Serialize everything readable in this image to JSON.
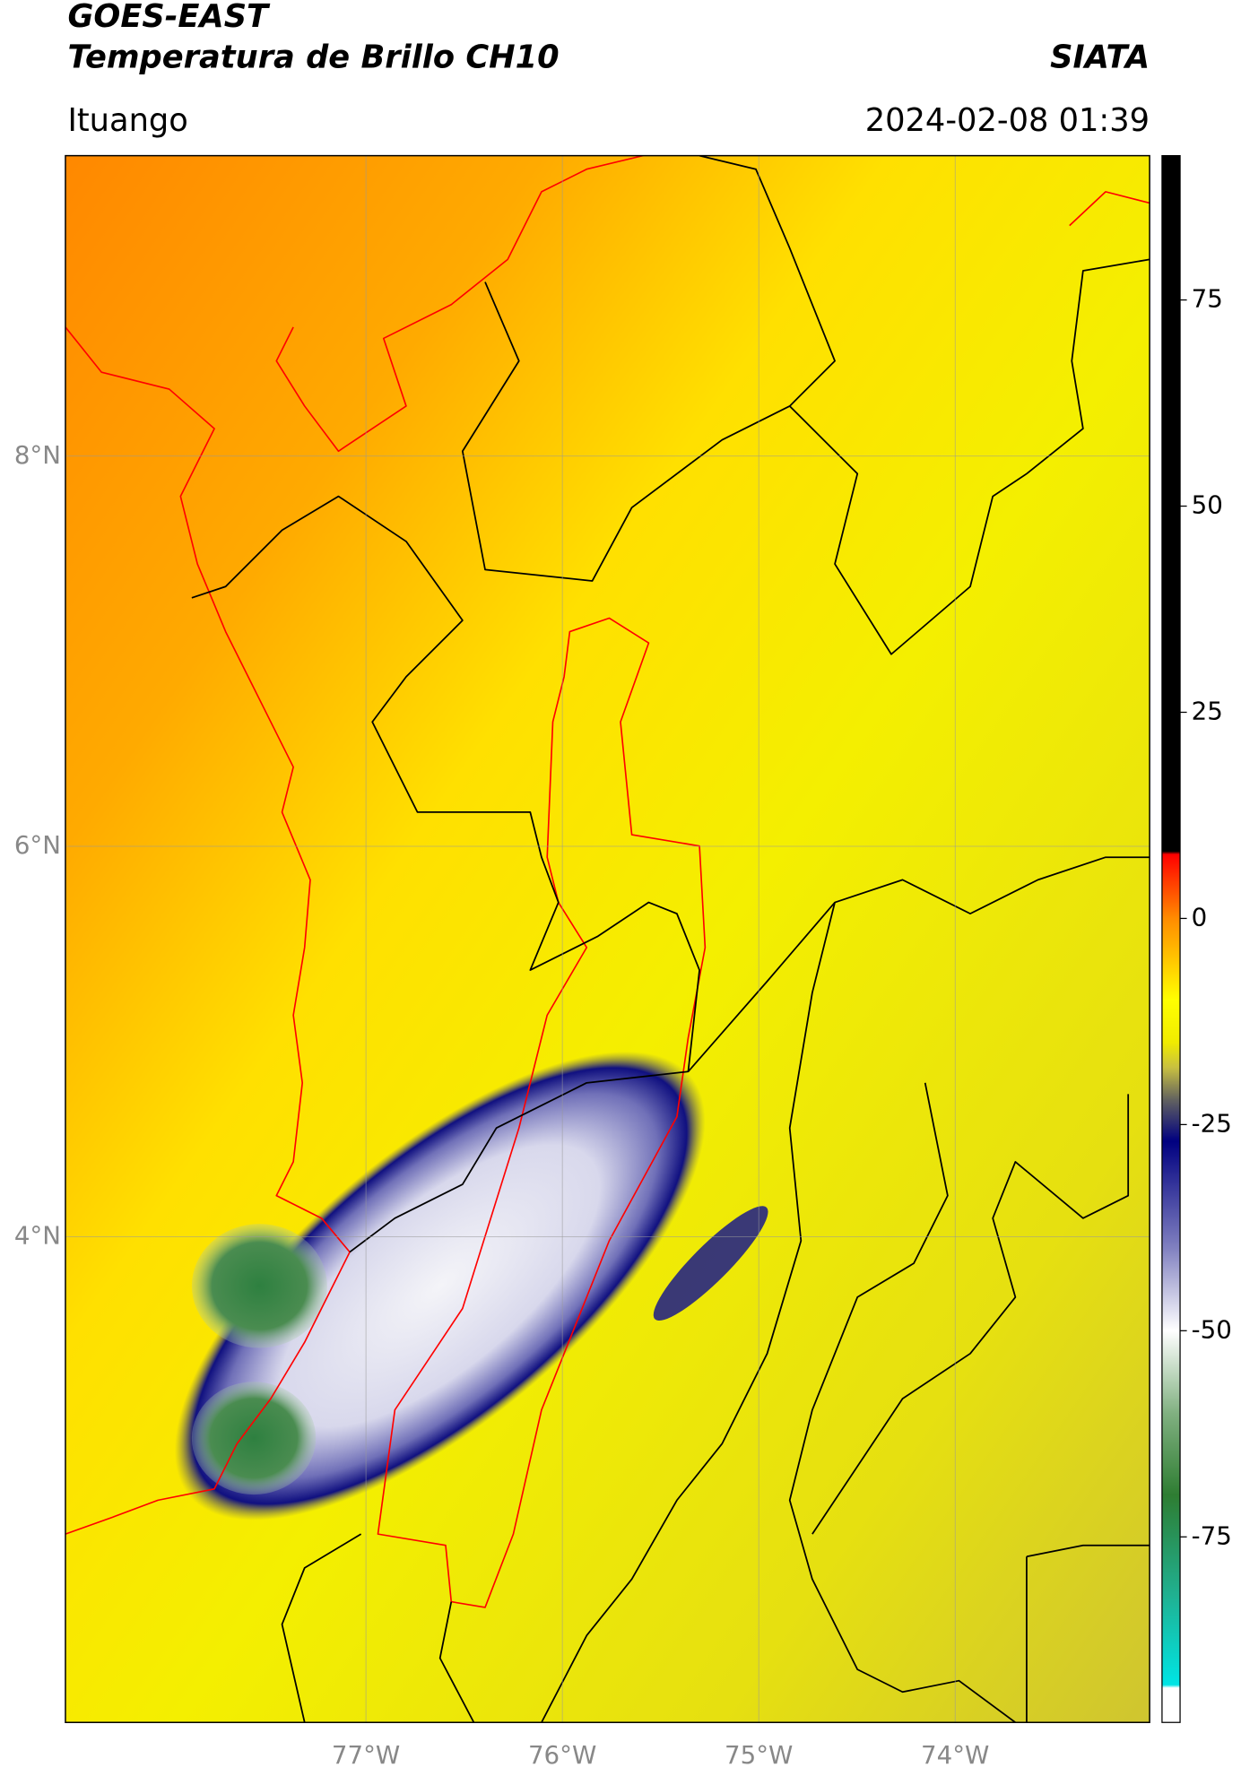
{
  "header": {
    "title": "GOES-EAST",
    "subtitle": "Temperatura de Brillo CH10",
    "brand": "SIATA",
    "location": "Ituango",
    "datetime": "2024-02-08 01:39"
  },
  "map": {
    "xlim": [
      -78.53,
      -73.01
    ],
    "ylim": [
      1.51,
      9.54
    ],
    "xticks": [
      {
        "value": -77,
        "label": "77°W"
      },
      {
        "value": -76,
        "label": "76°W"
      },
      {
        "value": -75,
        "label": "75°W"
      },
      {
        "value": -74,
        "label": "74°W"
      }
    ],
    "yticks": [
      {
        "value": 8,
        "label": "8°N"
      },
      {
        "value": 6,
        "label": "6°N"
      },
      {
        "value": 4,
        "label": "4°N"
      }
    ],
    "grid": true
  },
  "colorbar": {
    "lim": [
      -97.5,
      92.5
    ],
    "ticks": [
      75,
      50,
      25,
      0,
      -25,
      -50,
      -75
    ]
  }
}
